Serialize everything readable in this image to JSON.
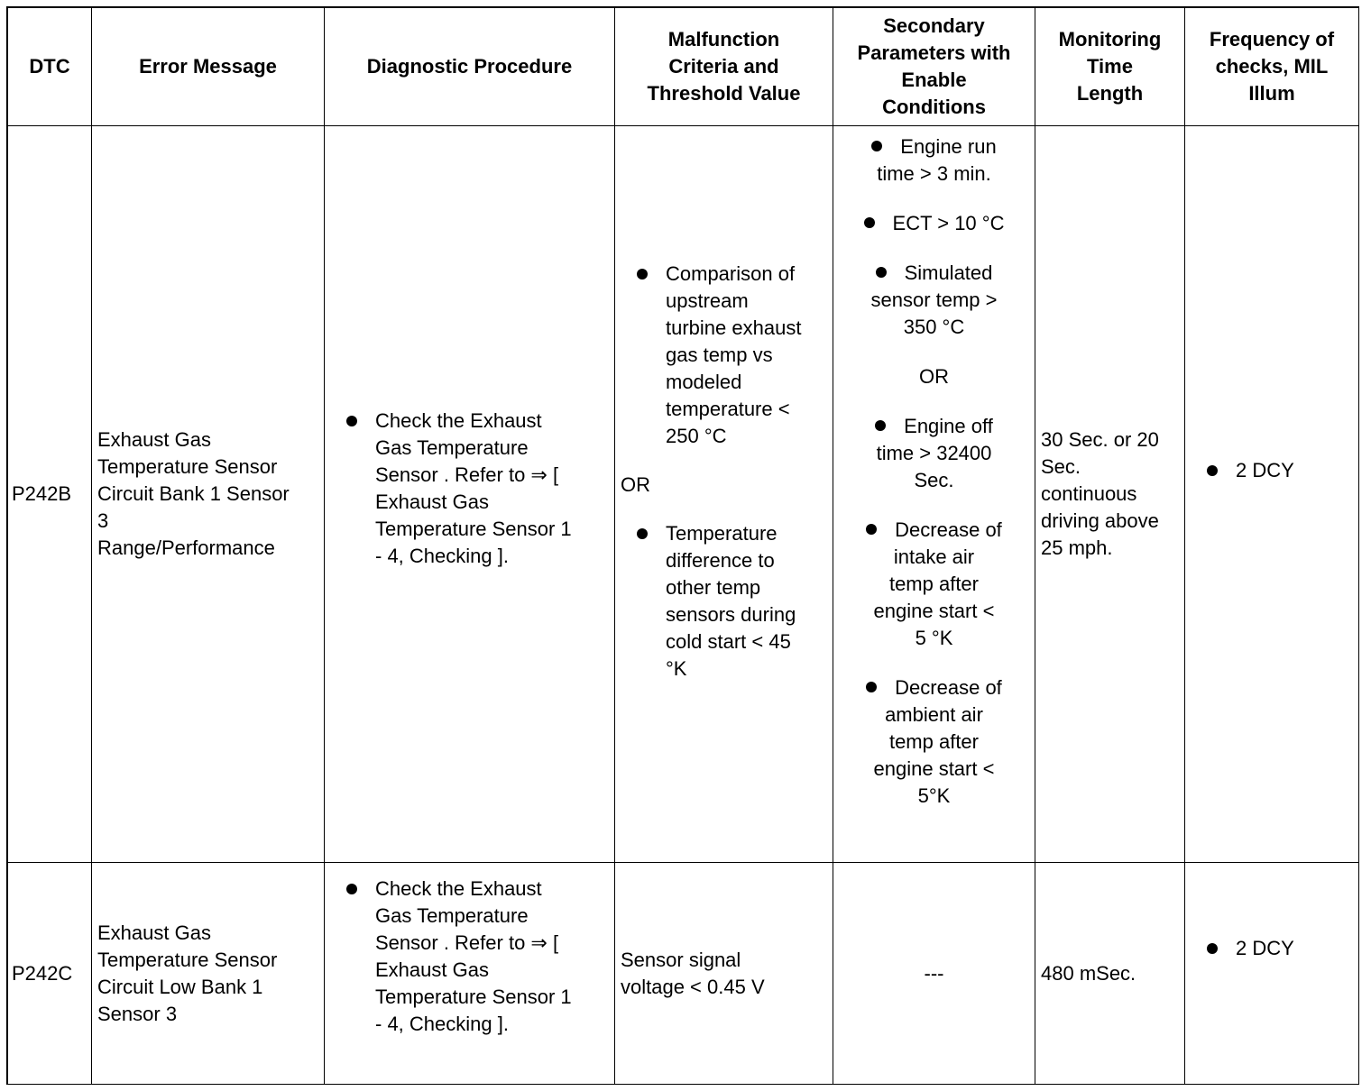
{
  "headers": [
    "DTC",
    "Error Message",
    "Diagnostic Procedure",
    "Malfunction\nCriteria and\nThreshold Value",
    "Secondary\nParameters with\nEnable\nConditions",
    "Monitoring\nTime\nLength",
    "Frequency of\nchecks, MIL\nIllum"
  ],
  "rows": [
    {
      "dtc": "P242B",
      "error": "Exhaust Gas\nTemperature Sensor\nCircuit Bank 1 Sensor\n3\nRange/Performance",
      "procedure": "Check the Exhaust\nGas Temperature\nSensor . Refer to ⇒ [\nExhaust Gas\nTemperature Sensor 1\n- 4, Checking ].",
      "malfunction": {
        "item1": "Comparison of\nupstream\nturbine exhaust\ngas temp vs\nmodeled\ntemperature <\n250 °C",
        "or": "OR",
        "item2": "Temperature\ndifference to\nother temp\nsensors during\ncold start < 45\n°K"
      },
      "secondary": {
        "i1": "Engine run\ntime > 3 min.",
        "i2": "ECT > 10 °C",
        "i3": "Simulated\nsensor temp >\n350 °C",
        "or": "OR",
        "i4": "Engine off\ntime > 32400\nSec.",
        "i5": "Decrease of\nintake air\ntemp after\nengine start <\n5 °K",
        "i6": "Decrease of\nambient air\ntemp after\nengine start <\n5°K"
      },
      "time": "30 Sec. or 20\nSec.\ncontinuous\ndriving above\n25 mph.",
      "frequency": "2 DCY"
    },
    {
      "dtc": "P242C",
      "error": "Exhaust Gas\nTemperature Sensor\nCircuit Low Bank 1\nSensor 3",
      "procedure": "Check the Exhaust\nGas Temperature\nSensor . Refer to ⇒ [\nExhaust Gas\nTemperature Sensor 1\n- 4, Checking ].",
      "malfunction": "Sensor signal\nvoltage < 0.45 V",
      "secondary": "---",
      "time": "480 mSec.",
      "frequency": "2 DCY"
    }
  ]
}
